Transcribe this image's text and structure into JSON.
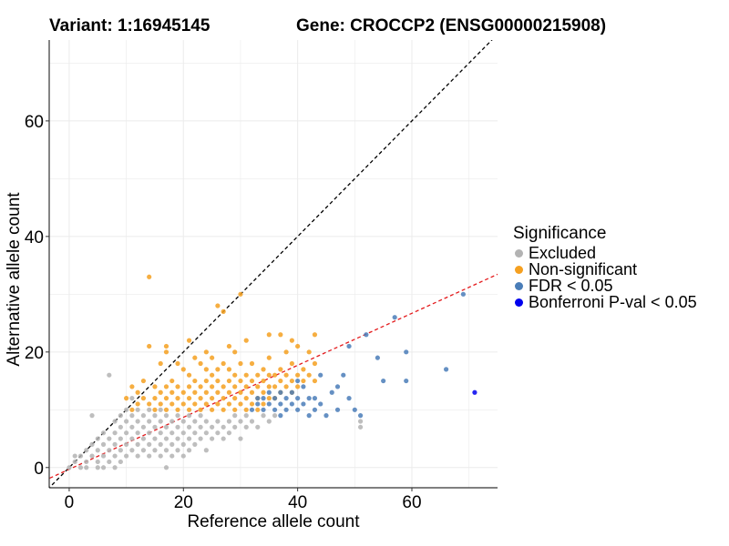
{
  "chart_data": {
    "type": "scatter",
    "title_left": "Variant: 1:16945145",
    "title_right": "Gene: CROCCP2 (ENSG00000215908)",
    "xlabel": "Reference allele count",
    "ylabel": "Alternative allele count",
    "xlim": [
      -3.5,
      75
    ],
    "ylim": [
      -3.5,
      74
    ],
    "x_ticks": [
      0,
      20,
      40,
      60
    ],
    "y_ticks": [
      0,
      20,
      40,
      60
    ],
    "grid": true,
    "lines": [
      {
        "name": "identity",
        "slope": 1,
        "intercept": 0,
        "color": "#000000",
        "dash": true
      },
      {
        "name": "expected ratio",
        "slope": 0.45,
        "intercept": -0.3,
        "color": "#e41a1c",
        "dash": true
      }
    ],
    "legend": {
      "title": "Significance",
      "position": "right",
      "items": [
        {
          "label": "Excluded",
          "color": "#b3b3b3"
        },
        {
          "label": "Non-significant",
          "color": "#f5a020"
        },
        {
          "label": "FDR < 0.05",
          "color": "#4a7db8"
        },
        {
          "label": "Bonferroni P-val < 0.05",
          "color": "#0000ee"
        }
      ]
    },
    "series": [
      {
        "name": "Excluded",
        "color": "#b3b3b3",
        "points": [
          [
            0,
            0
          ],
          [
            1,
            1
          ],
          [
            1,
            2
          ],
          [
            2,
            0
          ],
          [
            2,
            2
          ],
          [
            3,
            0
          ],
          [
            3,
            1
          ],
          [
            3,
            3
          ],
          [
            4,
            2
          ],
          [
            4,
            4
          ],
          [
            4,
            9
          ],
          [
            5,
            0
          ],
          [
            5,
            1
          ],
          [
            5,
            3
          ],
          [
            5,
            5
          ],
          [
            6,
            0
          ],
          [
            6,
            2
          ],
          [
            6,
            4
          ],
          [
            6,
            6
          ],
          [
            7,
            1
          ],
          [
            7,
            3
          ],
          [
            7,
            5
          ],
          [
            7,
            16
          ],
          [
            8,
            0
          ],
          [
            8,
            2
          ],
          [
            8,
            4
          ],
          [
            8,
            6
          ],
          [
            8,
            8
          ],
          [
            9,
            1
          ],
          [
            9,
            3
          ],
          [
            9,
            5
          ],
          [
            9,
            7
          ],
          [
            9,
            9
          ],
          [
            10,
            2
          ],
          [
            10,
            4
          ],
          [
            10,
            6
          ],
          [
            10,
            8
          ],
          [
            10,
            10
          ],
          [
            11,
            3
          ],
          [
            11,
            5
          ],
          [
            11,
            7
          ],
          [
            11,
            9
          ],
          [
            11,
            12
          ],
          [
            12,
            2
          ],
          [
            12,
            4
          ],
          [
            12,
            6
          ],
          [
            12,
            8
          ],
          [
            12,
            10
          ],
          [
            13,
            3
          ],
          [
            13,
            5
          ],
          [
            13,
            7
          ],
          [
            13,
            9
          ],
          [
            14,
            2
          ],
          [
            14,
            4
          ],
          [
            14,
            6
          ],
          [
            14,
            8
          ],
          [
            14,
            10
          ],
          [
            15,
            3
          ],
          [
            15,
            5
          ],
          [
            15,
            7
          ],
          [
            15,
            9
          ],
          [
            16,
            2
          ],
          [
            16,
            4
          ],
          [
            16,
            6
          ],
          [
            16,
            8
          ],
          [
            16,
            10
          ],
          [
            17,
            0
          ],
          [
            17,
            3
          ],
          [
            17,
            5
          ],
          [
            17,
            7
          ],
          [
            17,
            9
          ],
          [
            18,
            2
          ],
          [
            18,
            4
          ],
          [
            18,
            6
          ],
          [
            18,
            8
          ],
          [
            19,
            3
          ],
          [
            19,
            5
          ],
          [
            19,
            7
          ],
          [
            19,
            9
          ],
          [
            20,
            2
          ],
          [
            20,
            4
          ],
          [
            20,
            6
          ],
          [
            20,
            8
          ],
          [
            21,
            3
          ],
          [
            21,
            5
          ],
          [
            21,
            7
          ],
          [
            21,
            9
          ],
          [
            22,
            4
          ],
          [
            22,
            6
          ],
          [
            22,
            8
          ],
          [
            23,
            5
          ],
          [
            23,
            7
          ],
          [
            23,
            9
          ],
          [
            24,
            3
          ],
          [
            24,
            6
          ],
          [
            24,
            8
          ],
          [
            25,
            5
          ],
          [
            25,
            7
          ],
          [
            26,
            6
          ],
          [
            26,
            8
          ],
          [
            27,
            5
          ],
          [
            27,
            7
          ],
          [
            28,
            6
          ],
          [
            28,
            8
          ],
          [
            29,
            7
          ],
          [
            29,
            9
          ],
          [
            30,
            5
          ],
          [
            30,
            8
          ],
          [
            31,
            7
          ],
          [
            31,
            9
          ],
          [
            32,
            8
          ],
          [
            33,
            7
          ],
          [
            34,
            9
          ],
          [
            35,
            8
          ],
          [
            36,
            9
          ],
          [
            51,
            7
          ],
          [
            51,
            8
          ]
        ]
      },
      {
        "name": "Non-significant",
        "color": "#f5a020",
        "points": [
          [
            10,
            12
          ],
          [
            11,
            10
          ],
          [
            11,
            14
          ],
          [
            12,
            11
          ],
          [
            12,
            13
          ],
          [
            13,
            12
          ],
          [
            13,
            15
          ],
          [
            14,
            11
          ],
          [
            14,
            21
          ],
          [
            14,
            33
          ],
          [
            15,
            10
          ],
          [
            15,
            12
          ],
          [
            15,
            14
          ],
          [
            16,
            11
          ],
          [
            16,
            13
          ],
          [
            16,
            18
          ],
          [
            17,
            10
          ],
          [
            17,
            12
          ],
          [
            17,
            14
          ],
          [
            17,
            20
          ],
          [
            17,
            21
          ],
          [
            18,
            11
          ],
          [
            18,
            13
          ],
          [
            18,
            15
          ],
          [
            19,
            10
          ],
          [
            19,
            12
          ],
          [
            19,
            14
          ],
          [
            19,
            18
          ],
          [
            20,
            11
          ],
          [
            20,
            13
          ],
          [
            20,
            17
          ],
          [
            21,
            10
          ],
          [
            21,
            12
          ],
          [
            21,
            14
          ],
          [
            21,
            16
          ],
          [
            21,
            22
          ],
          [
            22,
            11
          ],
          [
            22,
            13
          ],
          [
            22,
            15
          ],
          [
            22,
            19
          ],
          [
            23,
            10
          ],
          [
            23,
            12
          ],
          [
            23,
            14
          ],
          [
            23,
            18
          ],
          [
            24,
            11
          ],
          [
            24,
            13
          ],
          [
            24,
            15
          ],
          [
            24,
            17
          ],
          [
            24,
            20
          ],
          [
            25,
            10
          ],
          [
            25,
            12
          ],
          [
            25,
            14
          ],
          [
            25,
            16
          ],
          [
            25,
            19
          ],
          [
            26,
            11
          ],
          [
            26,
            13
          ],
          [
            26,
            15
          ],
          [
            26,
            17
          ],
          [
            26,
            28
          ],
          [
            27,
            10
          ],
          [
            27,
            12
          ],
          [
            27,
            14
          ],
          [
            27,
            18
          ],
          [
            27,
            27
          ],
          [
            28,
            11
          ],
          [
            28,
            13
          ],
          [
            28,
            15
          ],
          [
            28,
            17
          ],
          [
            28,
            21
          ],
          [
            29,
            10
          ],
          [
            29,
            12
          ],
          [
            29,
            14
          ],
          [
            29,
            16
          ],
          [
            29,
            20
          ],
          [
            30,
            11
          ],
          [
            30,
            13
          ],
          [
            30,
            15
          ],
          [
            30,
            18
          ],
          [
            30,
            30
          ],
          [
            31,
            10
          ],
          [
            31,
            12
          ],
          [
            31,
            14
          ],
          [
            31,
            16
          ],
          [
            31,
            22
          ],
          [
            32,
            11
          ],
          [
            32,
            13
          ],
          [
            32,
            15
          ],
          [
            32,
            18
          ],
          [
            33,
            10
          ],
          [
            33,
            12
          ],
          [
            33,
            14
          ],
          [
            33,
            16
          ],
          [
            34,
            11
          ],
          [
            34,
            13
          ],
          [
            34,
            15
          ],
          [
            34,
            17
          ],
          [
            35,
            12
          ],
          [
            35,
            14
          ],
          [
            35,
            16
          ],
          [
            35,
            19
          ],
          [
            35,
            23
          ],
          [
            36,
            12
          ],
          [
            36,
            14
          ],
          [
            36,
            16
          ],
          [
            37,
            13
          ],
          [
            37,
            15
          ],
          [
            37,
            17
          ],
          [
            37,
            23
          ],
          [
            38,
            14
          ],
          [
            38,
            16
          ],
          [
            38,
            20
          ],
          [
            39,
            13
          ],
          [
            39,
            15
          ],
          [
            39,
            18
          ],
          [
            39,
            22
          ],
          [
            40,
            14
          ],
          [
            40,
            16
          ],
          [
            40,
            21
          ],
          [
            41,
            15
          ],
          [
            41,
            17
          ],
          [
            42,
            16
          ],
          [
            42,
            20
          ],
          [
            43,
            15
          ],
          [
            43,
            18
          ],
          [
            43,
            23
          ]
        ]
      },
      {
        "name": "FDR < 0.05",
        "color": "#4a7db8",
        "points": [
          [
            32,
            10
          ],
          [
            33,
            11
          ],
          [
            33,
            12
          ],
          [
            34,
            10
          ],
          [
            34,
            12
          ],
          [
            35,
            11
          ],
          [
            35,
            13
          ],
          [
            36,
            10
          ],
          [
            36,
            12
          ],
          [
            37,
            9
          ],
          [
            37,
            11
          ],
          [
            37,
            13
          ],
          [
            38,
            10
          ],
          [
            38,
            12
          ],
          [
            39,
            11
          ],
          [
            39,
            13
          ],
          [
            40,
            10
          ],
          [
            40,
            12
          ],
          [
            40,
            15
          ],
          [
            41,
            11
          ],
          [
            41,
            14
          ],
          [
            42,
            9
          ],
          [
            42,
            12
          ],
          [
            43,
            10
          ],
          [
            43,
            12
          ],
          [
            44,
            11
          ],
          [
            44,
            16
          ],
          [
            45,
            9
          ],
          [
            46,
            13
          ],
          [
            47,
            10
          ],
          [
            47,
            14
          ],
          [
            48,
            16
          ],
          [
            49,
            12
          ],
          [
            49,
            21
          ],
          [
            50,
            10
          ],
          [
            51,
            9
          ],
          [
            52,
            23
          ],
          [
            54,
            19
          ],
          [
            55,
            15
          ],
          [
            57,
            26
          ],
          [
            59,
            15
          ],
          [
            59,
            20
          ],
          [
            66,
            17
          ],
          [
            69,
            30
          ]
        ]
      },
      {
        "name": "Bonferroni P-val < 0.05",
        "color": "#0000ee",
        "points": [
          [
            71,
            13
          ]
        ]
      }
    ]
  }
}
